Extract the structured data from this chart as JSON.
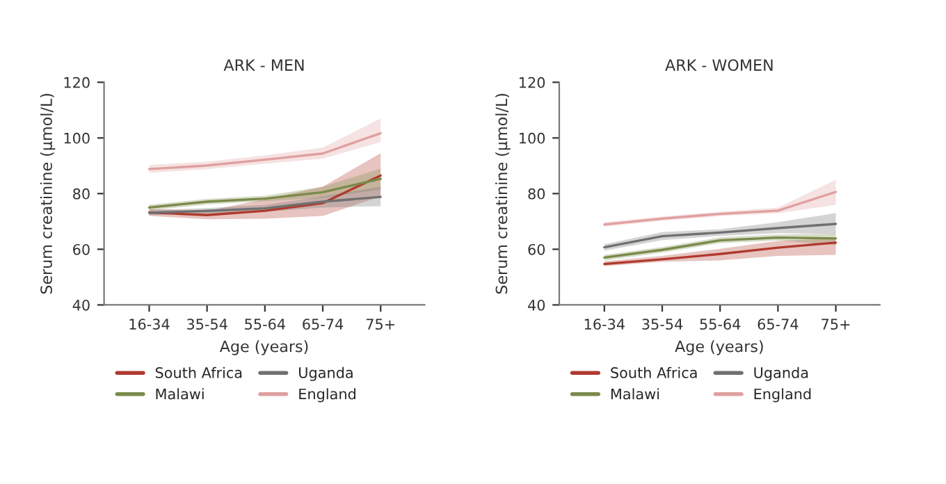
{
  "chart_data": [
    {
      "type": "line",
      "title": "ARK - MEN",
      "xlabel": "Age (years)",
      "ylabel": "Serum creatinine (µmol/L)",
      "categories": [
        "16-34",
        "35-54",
        "55-64",
        "65-74",
        "75+"
      ],
      "ylim": [
        40,
        120
      ],
      "yticks": [
        40,
        60,
        80,
        100,
        120
      ],
      "legend": "bottom",
      "line_style": "solid",
      "series": [
        {
          "name": "South Africa",
          "color": "#b03a2e",
          "values": [
            73.2,
            72.3,
            73.8,
            76.6,
            86.5
          ],
          "lower": [
            72,
            70.8,
            71,
            72,
            79
          ],
          "upper": [
            74.5,
            73.8,
            78,
            82.5,
            94.5
          ]
        },
        {
          "name": "Malawi",
          "color": "#7a8a4a",
          "values": [
            75.0,
            77.1,
            78.2,
            80.5,
            85.3
          ],
          "lower": [
            74,
            76.1,
            77.2,
            78.5,
            81.5
          ],
          "upper": [
            76,
            78.1,
            79.2,
            82.5,
            89
          ]
        },
        {
          "name": "Uganda",
          "color": "#707070",
          "values": [
            73.1,
            73.8,
            74.7,
            77.1,
            78.8
          ],
          "lower": [
            72.3,
            72.8,
            73.5,
            75,
            75.5
          ],
          "upper": [
            74.1,
            74.8,
            76,
            79,
            82.5
          ]
        },
        {
          "name": "England",
          "color": "#e0a0a0",
          "values": [
            88.8,
            90.1,
            92.2,
            94.4,
            101.7
          ],
          "lower": [
            87.5,
            88.8,
            90.7,
            92.6,
            98.5
          ],
          "upper": [
            90.3,
            91.5,
            93.7,
            96.5,
            107
          ]
        }
      ]
    },
    {
      "type": "line",
      "title": "ARK - WOMEN",
      "xlabel": "Age (years)",
      "ylabel": "Serum creatinine (µmol/L)",
      "categories": [
        "16-34",
        "35-54",
        "55-64",
        "65-74",
        "75+"
      ],
      "ylim": [
        40,
        120
      ],
      "yticks": [
        40,
        60,
        80,
        100,
        120
      ],
      "legend": "bottom",
      "line_style": "solid",
      "series": [
        {
          "name": "South Africa",
          "color": "#b03a2e",
          "values": [
            54.7,
            56.4,
            58.3,
            60.6,
            62.4
          ],
          "lower": [
            53.9,
            55.5,
            56,
            57.6,
            58
          ],
          "upper": [
            55.7,
            57.6,
            60.2,
            63,
            64
          ]
        },
        {
          "name": "Malawi",
          "color": "#7a8a4a",
          "values": [
            57,
            59.8,
            63.2,
            64.2,
            63.9
          ],
          "lower": [
            56,
            58.8,
            62.2,
            63.2,
            61.5
          ],
          "upper": [
            58,
            60.8,
            64.3,
            65.3,
            65.6
          ]
        },
        {
          "name": "Uganda",
          "color": "#707070",
          "values": [
            60.7,
            64.7,
            66,
            67.6,
            69.1
          ],
          "lower": [
            59.5,
            63.3,
            64.8,
            65.8,
            65.5
          ],
          "upper": [
            61.8,
            66.2,
            67.2,
            69.7,
            73
          ]
        },
        {
          "name": "England",
          "color": "#e0a0a0",
          "values": [
            68.9,
            71.0,
            72.7,
            73.9,
            80.6
          ],
          "lower": [
            68.1,
            70.2,
            71.9,
            72.9,
            76
          ],
          "upper": [
            69.7,
            71.8,
            73.5,
            75,
            85
          ]
        }
      ]
    }
  ]
}
